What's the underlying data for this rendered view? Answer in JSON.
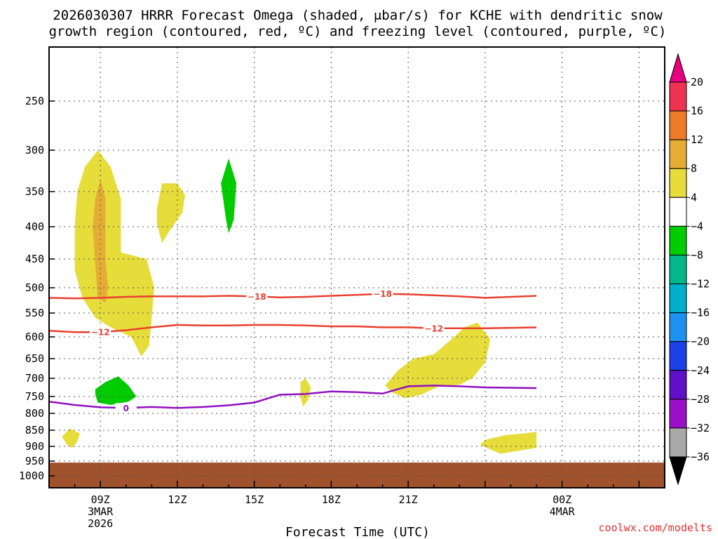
{
  "chart_data": {
    "type": "heatmap",
    "title_line1": "2026030307 HRRR Forecast Omega (shaded, μbar/s) for KCHE with dendritic snow",
    "title_line2": "growth region (contoured, red, ºC) and freezing level (contoured, purple, ºC)",
    "xlabel": "Forecast Time (UTC)",
    "credit": "coolwx.com/modelts",
    "x_range": [
      7,
      31
    ],
    "y_levels": [
      250,
      300,
      350,
      400,
      450,
      500,
      550,
      600,
      650,
      700,
      750,
      800,
      850,
      900,
      950,
      1000
    ],
    "y_tick_labels": [
      "250",
      "300",
      "350",
      "400",
      "450",
      "500",
      "550",
      "600",
      "650",
      "700",
      "750",
      "800",
      "850",
      "900",
      "950",
      "1000"
    ],
    "x_ticks": [
      {
        "x": 9,
        "line1": "09Z",
        "line2": "3MAR",
        "line3": "2026"
      },
      {
        "x": 12,
        "line1": "12Z",
        "line2": "",
        "line3": ""
      },
      {
        "x": 15,
        "line1": "15Z",
        "line2": "",
        "line3": ""
      },
      {
        "x": 18,
        "line1": "18Z",
        "line2": "",
        "line3": ""
      },
      {
        "x": 21,
        "line1": "21Z",
        "line2": "",
        "line3": ""
      },
      {
        "x": 24,
        "line1": "00Z",
        "line2": "4MAR",
        "line3": ""
      }
    ],
    "grid": "dotted",
    "ground": {
      "color": "#a0522d",
      "top_pressure": 955
    },
    "colorbar": {
      "ticks": [
        "20",
        "16",
        "12",
        "8",
        "4",
        "−4",
        "−8",
        "−12",
        "−16",
        "−20",
        "−24",
        "−28",
        "−32",
        "−36"
      ],
      "colors": [
        "#ee3350",
        "#ee7a2a",
        "#e6ad35",
        "#e6dc3a",
        "#ffffff",
        "#00cc00",
        "#00b88a",
        "#00b0c8",
        "#1e90f0",
        "#1a40e6",
        "#6010c8",
        "#9a10c8",
        "#a8a8a8"
      ],
      "top_color": "#e6007e",
      "bottom_color": "#000000"
    },
    "shaded_regions": [
      {
        "color": "#e6dc3a",
        "points": [
          [
            8.0,
            400
          ],
          [
            8.1,
            350
          ],
          [
            8.4,
            320
          ],
          [
            8.9,
            300
          ],
          [
            9.4,
            320
          ],
          [
            9.8,
            360
          ],
          [
            9.8,
            405
          ],
          [
            9.8,
            440
          ],
          [
            10.8,
            450
          ],
          [
            11.1,
            500
          ],
          [
            11.0,
            560
          ],
          [
            10.9,
            620
          ],
          [
            10.6,
            645
          ],
          [
            10.2,
            600
          ],
          [
            9.4,
            580
          ],
          [
            8.8,
            560
          ],
          [
            8.3,
            520
          ],
          [
            8.0,
            470
          ]
        ]
      },
      {
        "color": "#e6ad35",
        "points": [
          [
            8.7,
            400
          ],
          [
            8.8,
            360
          ],
          [
            9.0,
            335
          ],
          [
            9.2,
            360
          ],
          [
            9.2,
            450
          ],
          [
            9.3,
            500
          ],
          [
            9.2,
            530
          ],
          [
            8.9,
            520
          ],
          [
            8.8,
            460
          ]
        ]
      },
      {
        "color": "#e6dc3a",
        "points": [
          [
            11.2,
            375
          ],
          [
            11.2,
            395
          ],
          [
            11.4,
            425
          ],
          [
            11.8,
            400
          ],
          [
            12.2,
            380
          ],
          [
            12.3,
            355
          ],
          [
            12.0,
            340
          ],
          [
            11.4,
            340
          ]
        ]
      },
      {
        "color": "#00cc00",
        "points": [
          [
            14.0,
            310
          ],
          [
            14.3,
            340
          ],
          [
            14.2,
            390
          ],
          [
            14.0,
            410
          ],
          [
            13.9,
            390
          ],
          [
            13.7,
            340
          ]
        ]
      },
      {
        "color": "#00cc00",
        "points": [
          [
            8.8,
            730
          ],
          [
            9.2,
            710
          ],
          [
            9.7,
            695
          ],
          [
            10.1,
            720
          ],
          [
            10.4,
            750
          ],
          [
            10.1,
            765
          ],
          [
            9.4,
            775
          ],
          [
            8.9,
            768
          ],
          [
            8.8,
            745
          ]
        ]
      },
      {
        "color": "#e6dc3a",
        "points": [
          [
            7.5,
            870
          ],
          [
            7.8,
            845
          ],
          [
            8.2,
            860
          ],
          [
            8.1,
            885
          ],
          [
            7.9,
            905
          ],
          [
            7.7,
            895
          ]
        ]
      },
      {
        "color": "#e6dc3a",
        "points": [
          [
            16.8,
            710
          ],
          [
            17.0,
            700
          ],
          [
            17.2,
            725
          ],
          [
            17.1,
            760
          ],
          [
            16.9,
            780
          ],
          [
            16.8,
            750
          ]
        ]
      },
      {
        "color": "#e6dc3a",
        "points": [
          [
            20.1,
            720
          ],
          [
            20.6,
            680
          ],
          [
            21.2,
            650
          ],
          [
            22.0,
            640
          ],
          [
            22.6,
            610
          ],
          [
            23.2,
            580
          ],
          [
            23.7,
            570
          ],
          [
            24.2,
            605
          ],
          [
            24.0,
            660
          ],
          [
            23.5,
            700
          ],
          [
            23.0,
            718
          ],
          [
            22.2,
            722
          ],
          [
            21.5,
            745
          ],
          [
            20.9,
            755
          ],
          [
            20.4,
            740
          ]
        ]
      },
      {
        "color": "#e6dc3a",
        "points": [
          [
            24.0,
            880
          ],
          [
            24.8,
            865
          ],
          [
            25.5,
            860
          ],
          [
            26.0,
            855
          ],
          [
            26.0,
            905
          ],
          [
            25.3,
            915
          ],
          [
            24.6,
            925
          ],
          [
            24.2,
            910
          ],
          [
            23.8,
            895
          ]
        ]
      }
    ],
    "contours": [
      {
        "color": "#e84030",
        "label": "−18",
        "label_x": [
          15.1,
          20.0
        ],
        "points": [
          [
            7,
            520
          ],
          [
            8,
            521
          ],
          [
            9,
            520
          ],
          [
            10,
            518
          ],
          [
            11,
            517
          ],
          [
            12,
            517
          ],
          [
            13,
            517
          ],
          [
            14,
            516
          ],
          [
            15,
            517
          ],
          [
            16,
            519
          ],
          [
            17,
            518
          ],
          [
            18,
            516
          ],
          [
            19,
            514
          ],
          [
            20,
            512
          ],
          [
            21,
            513
          ],
          [
            22,
            515
          ],
          [
            23,
            517
          ],
          [
            24,
            520
          ],
          [
            25,
            518
          ],
          [
            26,
            516
          ]
        ]
      },
      {
        "color": "#e84030",
        "label": "−12",
        "label_x": [
          9.0,
          22.0
        ],
        "points": [
          [
            7,
            587
          ],
          [
            8,
            590
          ],
          [
            9,
            590
          ],
          [
            10,
            586
          ],
          [
            11,
            580
          ],
          [
            12,
            575
          ],
          [
            13,
            576
          ],
          [
            14,
            576
          ],
          [
            15,
            575
          ],
          [
            16,
            575
          ],
          [
            17,
            576
          ],
          [
            18,
            578
          ],
          [
            19,
            578
          ],
          [
            20,
            580
          ],
          [
            21,
            580
          ],
          [
            22,
            582
          ],
          [
            23,
            582
          ],
          [
            24,
            582
          ],
          [
            25,
            581
          ],
          [
            26,
            580
          ]
        ]
      },
      {
        "color": "#9010c0",
        "label": "0",
        "label_x": [
          10.0
        ],
        "points": [
          [
            7,
            765
          ],
          [
            8,
            775
          ],
          [
            9,
            782
          ],
          [
            10,
            784
          ],
          [
            11,
            781
          ],
          [
            12,
            784
          ],
          [
            13,
            781
          ],
          [
            14,
            776
          ],
          [
            15,
            768
          ],
          [
            16,
            745
          ],
          [
            17,
            743
          ],
          [
            18,
            736
          ],
          [
            19,
            738
          ],
          [
            20,
            742
          ],
          [
            21,
            722
          ],
          [
            22,
            720
          ],
          [
            23,
            722
          ],
          [
            24,
            725
          ],
          [
            25,
            726
          ],
          [
            26,
            727
          ]
        ]
      }
    ]
  }
}
